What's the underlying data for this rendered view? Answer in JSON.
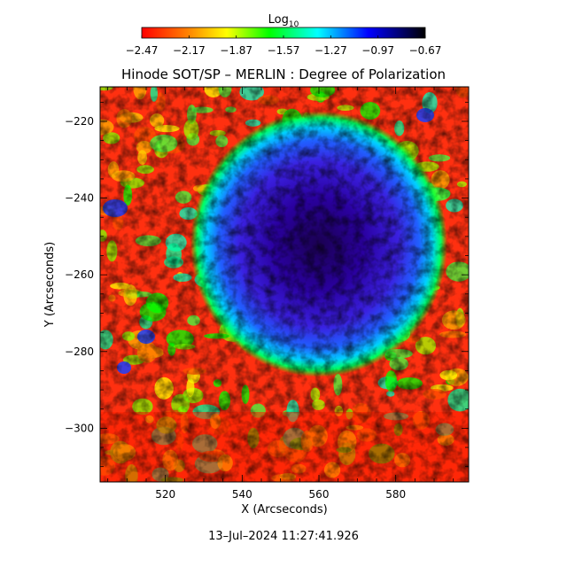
{
  "chart_data": {
    "type": "heatmap",
    "title": "Hinode SOT/SP – MERLIN : Degree of Polarization",
    "xlabel": "X (Arcseconds)",
    "ylabel": "Y (Arcseconds)",
    "xlim": [
      503,
      599
    ],
    "ylim": [
      -314,
      -211
    ],
    "x_ticks": [
      520,
      540,
      560,
      580
    ],
    "x_tick_labels": [
      "520",
      "540",
      "560",
      "580"
    ],
    "y_ticks": [
      -220,
      -240,
      -260,
      -280,
      -300
    ],
    "y_tick_labels": [
      "−220",
      "−240",
      "−260",
      "−280",
      "−300"
    ],
    "colorbar": {
      "label_base": "Log",
      "label_sub": "10",
      "range": [
        -2.47,
        -0.67
      ],
      "ticks": [
        -2.47,
        -2.17,
        -1.87,
        -1.57,
        -1.27,
        -0.97,
        -0.67
      ],
      "tick_labels": [
        "−2.47",
        "−2.17",
        "−1.87",
        "−1.57",
        "−1.27",
        "−0.97",
        "−0.67"
      ],
      "colormap": [
        "#ff0000",
        "#ff8000",
        "#ffff00",
        "#00ff00",
        "#00ffff",
        "#0000ff",
        "#000000"
      ]
    },
    "features": {
      "umbra_center": [
        560,
        -252
      ],
      "core_value": -0.72,
      "background_value": -2.35
    },
    "grid": false,
    "legend": "none"
  },
  "footer": {
    "timestamp": "13–Jul–2024 11:27:41.926"
  }
}
